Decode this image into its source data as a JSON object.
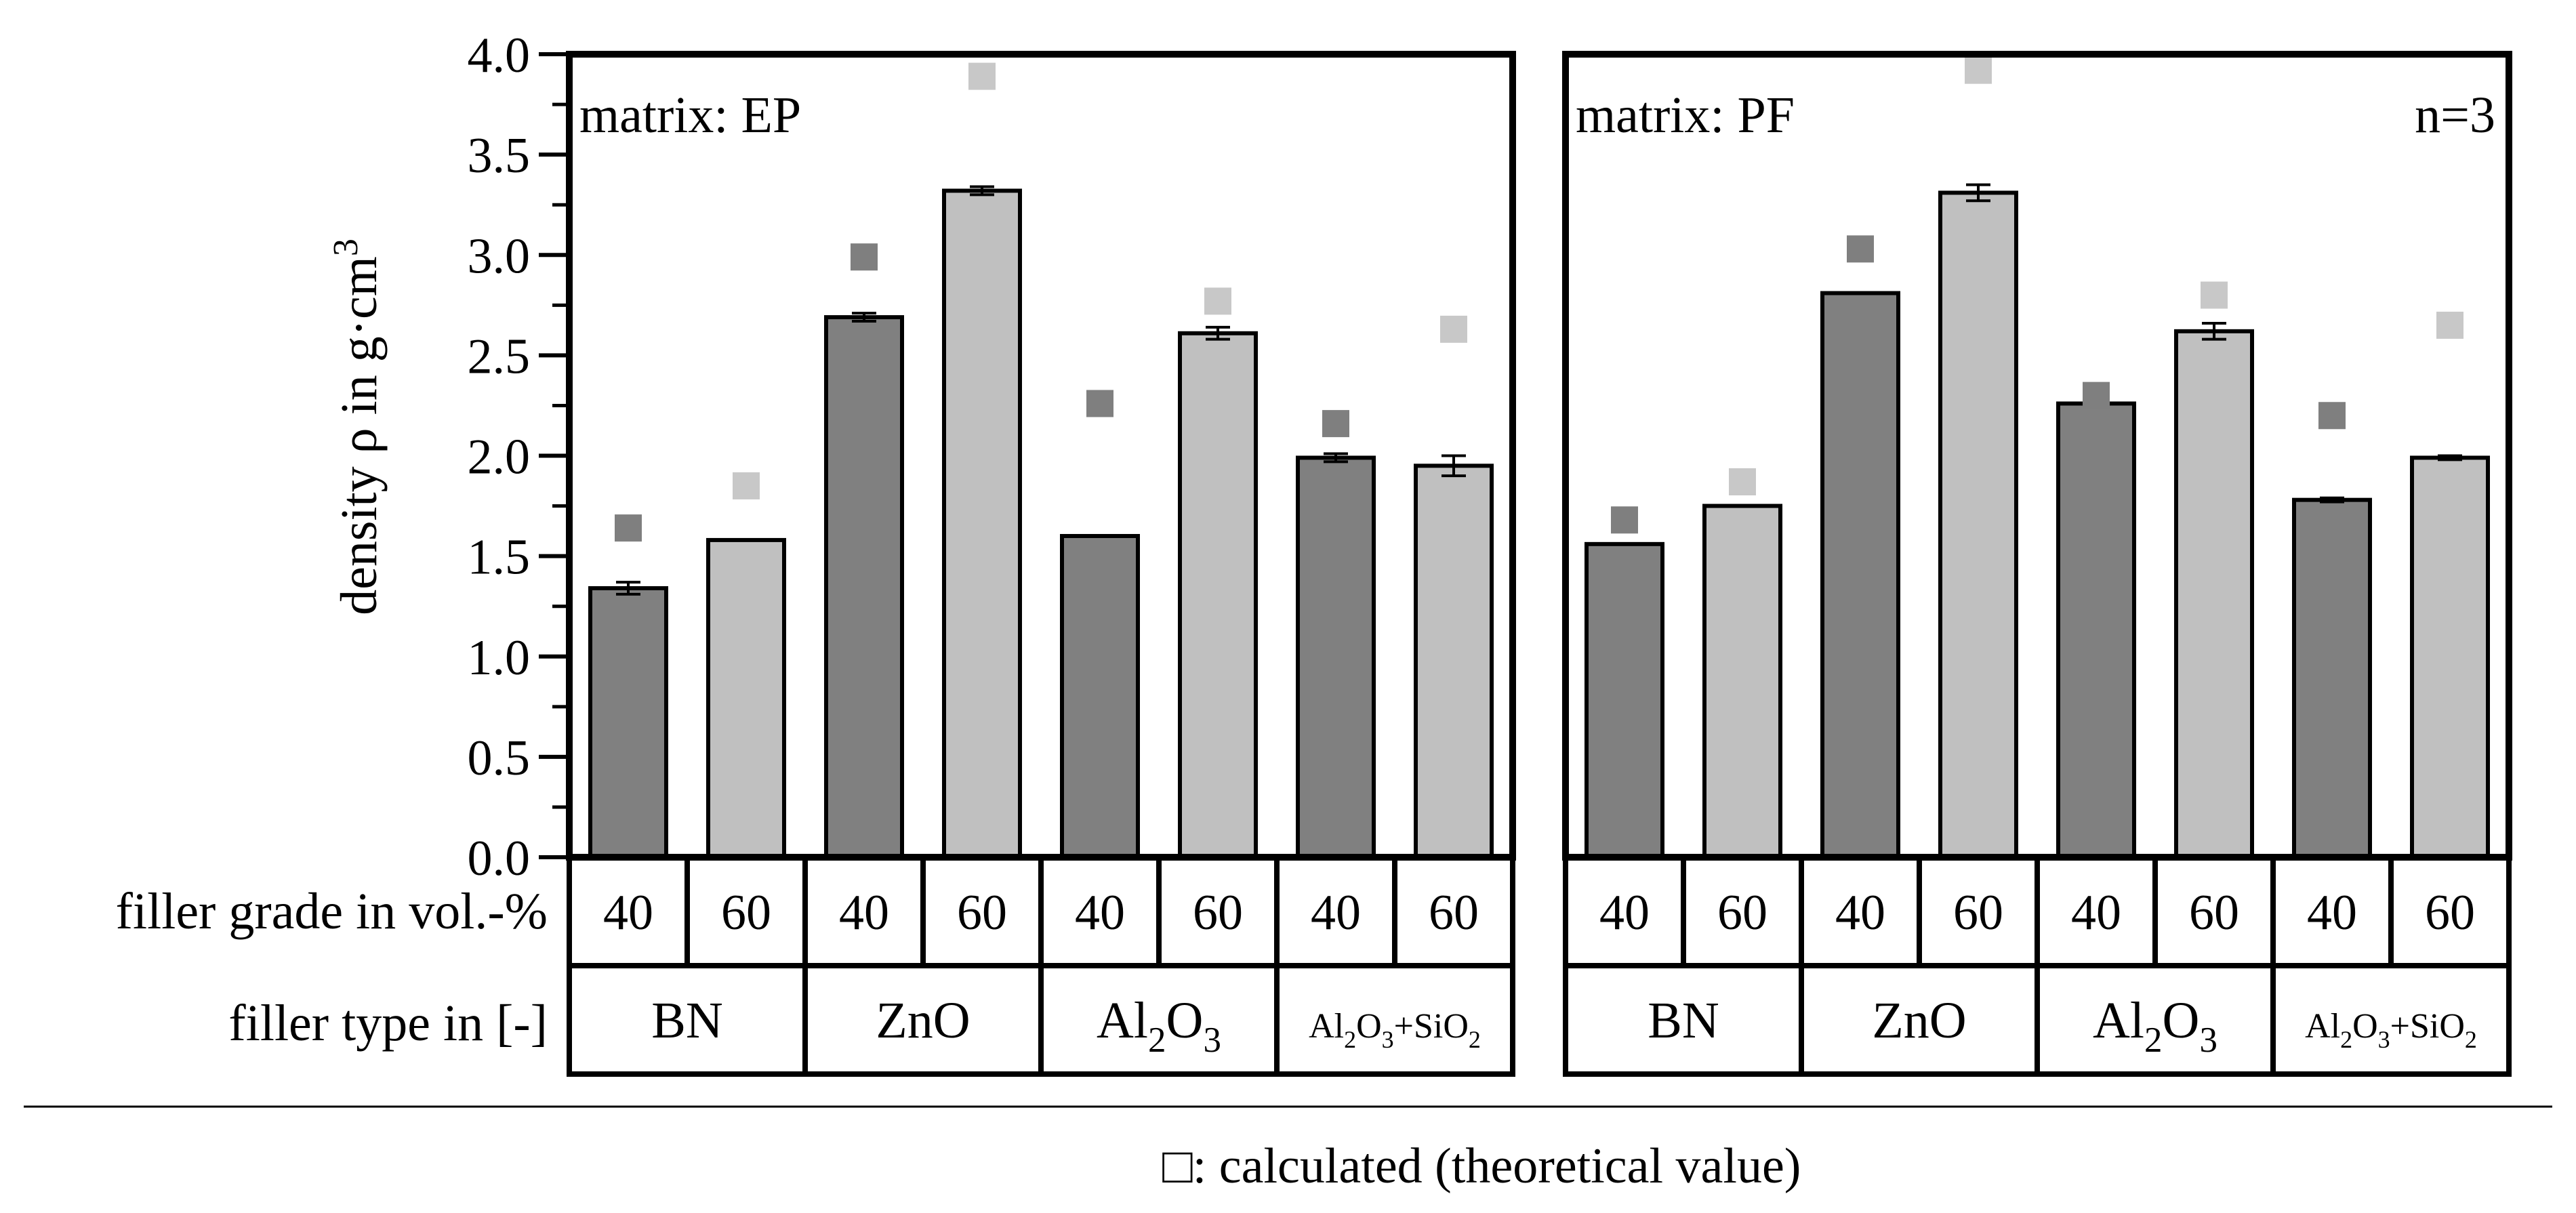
{
  "colors": {
    "dark_bar": "#808080",
    "light_bar": "#c0c0c0",
    "dark_marker": "#7f7f7f",
    "light_marker": "#c8c8c8",
    "frame": "#000000"
  },
  "chart_data": {
    "type": "bar",
    "ylabel_main": "density ρ in g·cm",
    "ylabel_exponent": "3",
    "ylim": [
      0,
      4.0
    ],
    "yticks": [
      "0.0",
      "0.5",
      "1.0",
      "1.5",
      "2.0",
      "2.5",
      "3.0",
      "3.5",
      "4.0"
    ],
    "row_label_grade": "filler grade in vol.-%",
    "row_label_type": "filler type in [-]",
    "legend": "□: calculated (theoretical value)",
    "n_label": "n=3",
    "filler_groups": [
      {
        "name": "BN"
      },
      {
        "name": "ZnO"
      },
      {
        "name": "Al2O3",
        "parts": [
          [
            "Al",
            ""
          ],
          [
            "2",
            "sub"
          ],
          [
            "O",
            ""
          ],
          [
            "3",
            "sub"
          ]
        ]
      },
      {
        "name": "Al2O3+SiO2",
        "parts": [
          [
            "Al",
            ""
          ],
          [
            "2",
            "sub"
          ],
          [
            "O",
            ""
          ],
          [
            "3",
            "sub"
          ],
          [
            "+SiO",
            ""
          ],
          [
            "2",
            "sub"
          ]
        ]
      }
    ],
    "grades": [
      "40",
      "60"
    ],
    "panels": [
      {
        "matrix_label": "matrix: EP",
        "values": [
          1.34,
          1.58,
          2.69,
          3.32,
          1.6,
          2.61,
          1.99,
          1.95
        ],
        "errors": [
          0.03,
          0.0,
          0.02,
          0.02,
          0.0,
          0.03,
          0.02,
          0.05
        ],
        "calculated": [
          1.64,
          1.85,
          2.99,
          3.89,
          2.26,
          2.77,
          2.16,
          2.63
        ]
      },
      {
        "matrix_label": "matrix: PF",
        "values": [
          1.56,
          1.75,
          2.81,
          3.31,
          2.26,
          2.62,
          1.78,
          1.99
        ],
        "errors": [
          0.0,
          0.0,
          0.0,
          0.04,
          0.01,
          0.04,
          0.01,
          0.01
        ],
        "calculated": [
          1.68,
          1.87,
          3.03,
          3.92,
          2.3,
          2.8,
          2.2,
          2.65
        ]
      }
    ]
  }
}
